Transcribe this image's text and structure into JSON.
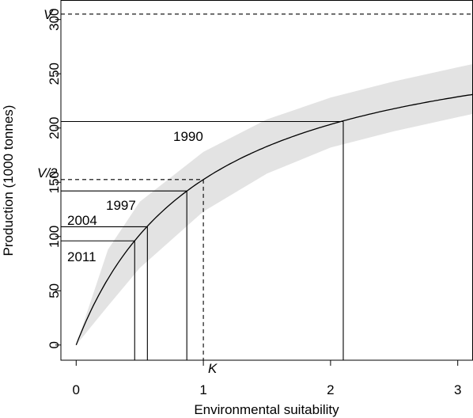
{
  "chart_data": {
    "type": "line",
    "xlabel": "Environmental suitability",
    "ylabel": "Production (1000 tonnes)",
    "xlim": [
      -0.12,
      3.12
    ],
    "ylim": [
      -14,
      318
    ],
    "x_ticks": [
      0,
      1,
      2,
      3
    ],
    "y_ticks": [
      0,
      50,
      100,
      150,
      200,
      250,
      300
    ],
    "grid": false,
    "curve": {
      "model": "michaelis-menten",
      "V": 305,
      "K": 1,
      "x_range": [
        0,
        3.12
      ]
    },
    "confidence_band": {
      "x": [
        0,
        0.25,
        0.5,
        1,
        1.5,
        2,
        2.5,
        3,
        3.12
      ],
      "lower": [
        0,
        36,
        71,
        123,
        158,
        182,
        197,
        210,
        213
      ],
      "upper": [
        0,
        88,
        132,
        178,
        208,
        228,
        243,
        256,
        259
      ]
    },
    "reference_lines": {
      "V": {
        "value": 305,
        "label": "V"
      },
      "half_V": {
        "value": 152.5,
        "label": "V/2"
      },
      "K": {
        "value": 1,
        "label": "K"
      }
    },
    "years": [
      {
        "label": "1990",
        "x": 2.1,
        "y": 206
      },
      {
        "label": "1997",
        "x": 0.87,
        "y": 142
      },
      {
        "label": "2004",
        "x": 0.56,
        "y": 109
      },
      {
        "label": "2011",
        "x": 0.46,
        "y": 96
      }
    ]
  }
}
